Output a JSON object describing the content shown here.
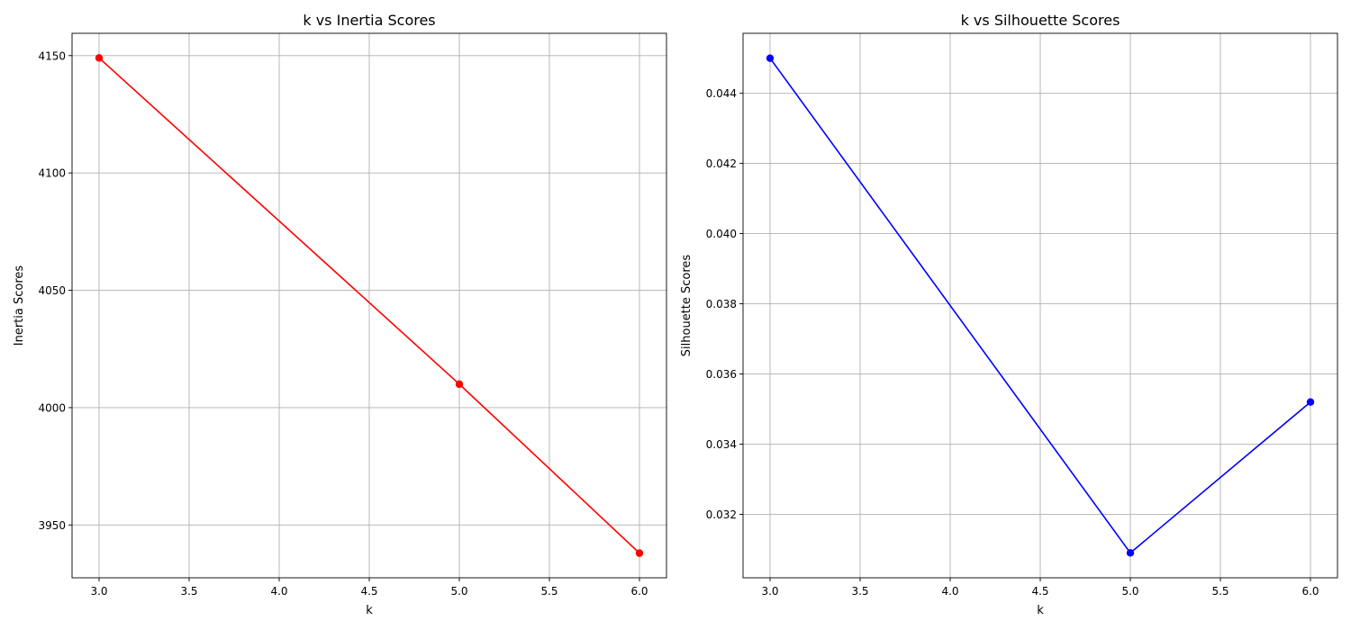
{
  "chart_data": [
    {
      "type": "line",
      "title": "k vs Inertia Scores",
      "xlabel": "k",
      "ylabel": "Inertia Scores",
      "x": [
        3,
        5,
        6
      ],
      "y": [
        4149,
        4010,
        3938
      ],
      "color": "#ff0000",
      "xlim": [
        2.85,
        6.15
      ],
      "ylim": [
        3927.5,
        4159.5
      ],
      "xticks": [
        "3.0",
        "3.5",
        "4.0",
        "4.5",
        "5.0",
        "5.5",
        "6.0"
      ],
      "yticks": [
        "3950",
        "4000",
        "4050",
        "4100",
        "4150"
      ],
      "grid": true
    },
    {
      "type": "line",
      "title": "k vs Silhouette Scores",
      "xlabel": "k",
      "ylabel": "Silhouette Scores",
      "x": [
        3,
        5,
        6
      ],
      "y": [
        0.045,
        0.0309,
        0.0352
      ],
      "color": "#0000ff",
      "xlim": [
        2.85,
        6.15
      ],
      "ylim": [
        0.03019,
        0.04571
      ],
      "xticks": [
        "3.0",
        "3.5",
        "4.0",
        "4.5",
        "5.0",
        "5.5",
        "6.0"
      ],
      "yticks": [
        "0.032",
        "0.034",
        "0.036",
        "0.038",
        "0.040",
        "0.042",
        "0.044"
      ],
      "grid": true
    }
  ]
}
